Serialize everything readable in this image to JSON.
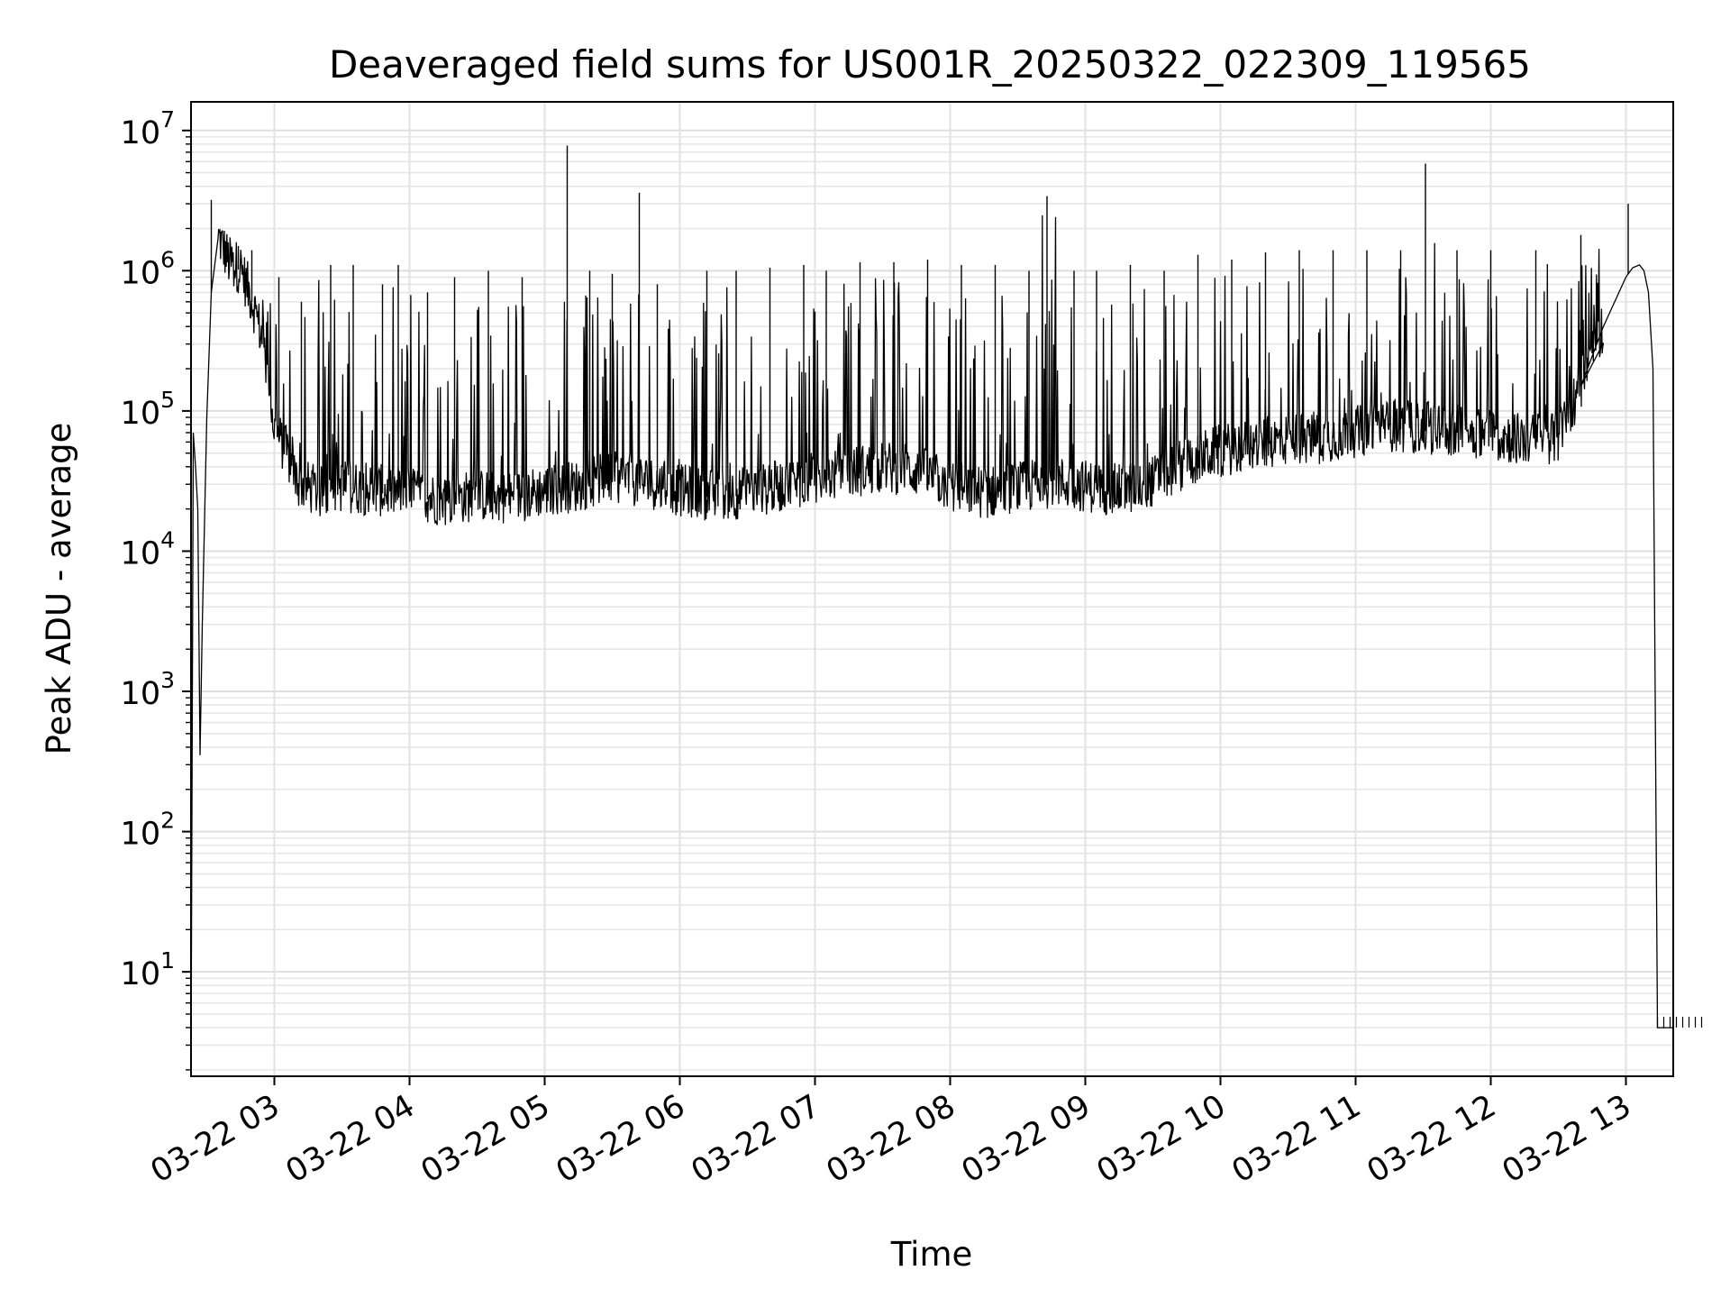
{
  "chart_data": {
    "type": "line",
    "title": "Deaveraged field sums for US001R_20250322_022309_119565",
    "xlabel": "Time",
    "ylabel": "Peak ADU - average",
    "yscale": "log",
    "ylim": [
      1.8,
      16000000
    ],
    "xlim": [
      "03-22 02:23",
      "03-22 13:21"
    ],
    "grid": true,
    "line_color": "#000000",
    "x_ticks": [
      "03-22 03",
      "03-22 04",
      "03-22 05",
      "03-22 06",
      "03-22 07",
      "03-22 08",
      "03-22 09",
      "03-22 10",
      "03-22 11",
      "03-22 12",
      "03-22 13"
    ],
    "y_ticks": [
      {
        "base": "10",
        "exp": "1",
        "value": 10
      },
      {
        "base": "10",
        "exp": "2",
        "value": 100
      },
      {
        "base": "10",
        "exp": "3",
        "value": 1000
      },
      {
        "base": "10",
        "exp": "4",
        "value": 10000
      },
      {
        "base": "10",
        "exp": "5",
        "value": 100000
      },
      {
        "base": "10",
        "exp": "6",
        "value": 1000000
      },
      {
        "base": "10",
        "exp": "7",
        "value": 10000000
      }
    ],
    "series": [
      {
        "x": [
          "03-22 02:23",
          "03-22 02:24",
          "03-22 02:25",
          "03-22 02:26",
          "03-22 02:27",
          "03-22 02:28",
          "03-22 02:30",
          "03-22 02:32",
          "03-22 02:35",
          "03-22 02:40",
          "03-22 02:45",
          "03-22 02:50",
          "03-22 02:55",
          "03-22 03:00",
          "03-22 03:05",
          "03-22 03:10",
          "03-22 03:20",
          "03-22 03:30",
          "03-22 03:45",
          "03-22 04:00",
          "03-22 04:15",
          "03-22 04:30",
          "03-22 04:45",
          "03-22 05:00",
          "03-22 05:15",
          "03-22 05:30",
          "03-22 05:45",
          "03-22 06:00",
          "03-22 06:15",
          "03-22 06:30",
          "03-22 06:45",
          "03-22 07:00",
          "03-22 07:15",
          "03-22 07:30",
          "03-22 07:45",
          "03-22 08:00",
          "03-22 08:15",
          "03-22 08:30",
          "03-22 08:45",
          "03-22 09:00",
          "03-22 09:15",
          "03-22 09:30",
          "03-22 09:45",
          "03-22 10:00",
          "03-22 10:15",
          "03-22 10:30",
          "03-22 10:45",
          "03-22 11:00",
          "03-22 11:15",
          "03-22 11:30",
          "03-22 11:45",
          "03-22 12:00",
          "03-22 12:15",
          "03-22 12:30",
          "03-22 12:40",
          "03-22 12:50",
          "03-22 13:00",
          "03-22 13:03",
          "03-22 13:06",
          "03-22 13:08",
          "03-22 13:10",
          "03-22 13:12",
          "03-22 13:14",
          "03-22 13:21"
        ],
        "y": [
          2,
          70000,
          40000,
          20000,
          350,
          3000,
          90000,
          700000,
          1700000,
          1100000,
          1000000,
          600000,
          300000,
          70000,
          50000,
          30000,
          25000,
          28000,
          26000,
          25000,
          22000,
          24000,
          23000,
          26000,
          28000,
          32000,
          30000,
          26000,
          24000,
          25000,
          28000,
          32000,
          35000,
          38000,
          36000,
          28000,
          25000,
          27000,
          30000,
          28000,
          26000,
          30000,
          42000,
          50000,
          55000,
          60000,
          62000,
          68000,
          75000,
          72000,
          70000,
          65000,
          60000,
          62000,
          150000,
          400000,
          900000,
          1050000,
          1100000,
          1000000,
          700000,
          200000,
          4,
          4
        ]
      },
      {
        "x": [
          "03-22 02:32",
          "03-22 02:38",
          "03-22 02:44",
          "03-22 02:50",
          "03-22 03:02",
          "03-22 03:12",
          "03-22 03:25",
          "03-22 03:35",
          "03-22 03:48",
          "03-22 03:55",
          "03-22 04:08",
          "03-22 04:20",
          "03-22 04:35",
          "03-22 04:50",
          "03-22 05:10",
          "03-22 05:20",
          "03-22 05:30",
          "03-22 05:42",
          "03-22 05:50",
          "03-22 06:12",
          "03-22 06:25",
          "03-22 06:40",
          "03-22 06:55",
          "03-22 07:05",
          "03-22 07:20",
          "03-22 07:35",
          "03-22 07:50",
          "03-22 08:05",
          "03-22 08:20",
          "03-22 08:35",
          "03-22 08:43",
          "03-22 08:55",
          "03-22 09:05",
          "03-22 09:20",
          "03-22 09:35",
          "03-22 09:50",
          "03-22 10:05",
          "03-22 10:20",
          "03-22 10:35",
          "03-22 10:50",
          "03-22 11:05",
          "03-22 11:20",
          "03-22 11:31",
          "03-22 11:45",
          "03-22 12:00",
          "03-22 12:20",
          "03-22 12:40",
          "03-22 13:01"
        ],
        "y": [
          3200000,
          1300000,
          1500000,
          1400000,
          900000,
          600000,
          1100000,
          1100000,
          800000,
          1100000,
          700000,
          900000,
          1000000,
          900000,
          7800000,
          1000000,
          950000,
          3600000,
          800000,
          1000000,
          1000000,
          1050000,
          1100000,
          1000000,
          1150000,
          1150000,
          1200000,
          1100000,
          1100000,
          1000000,
          3400000,
          1000000,
          1000000,
          1100000,
          1000000,
          1300000,
          1200000,
          1350000,
          1400000,
          1400000,
          1400000,
          1400000,
          5800000,
          1400000,
          1400000,
          1400000,
          1800000,
          3000000
        ]
      }
    ]
  }
}
